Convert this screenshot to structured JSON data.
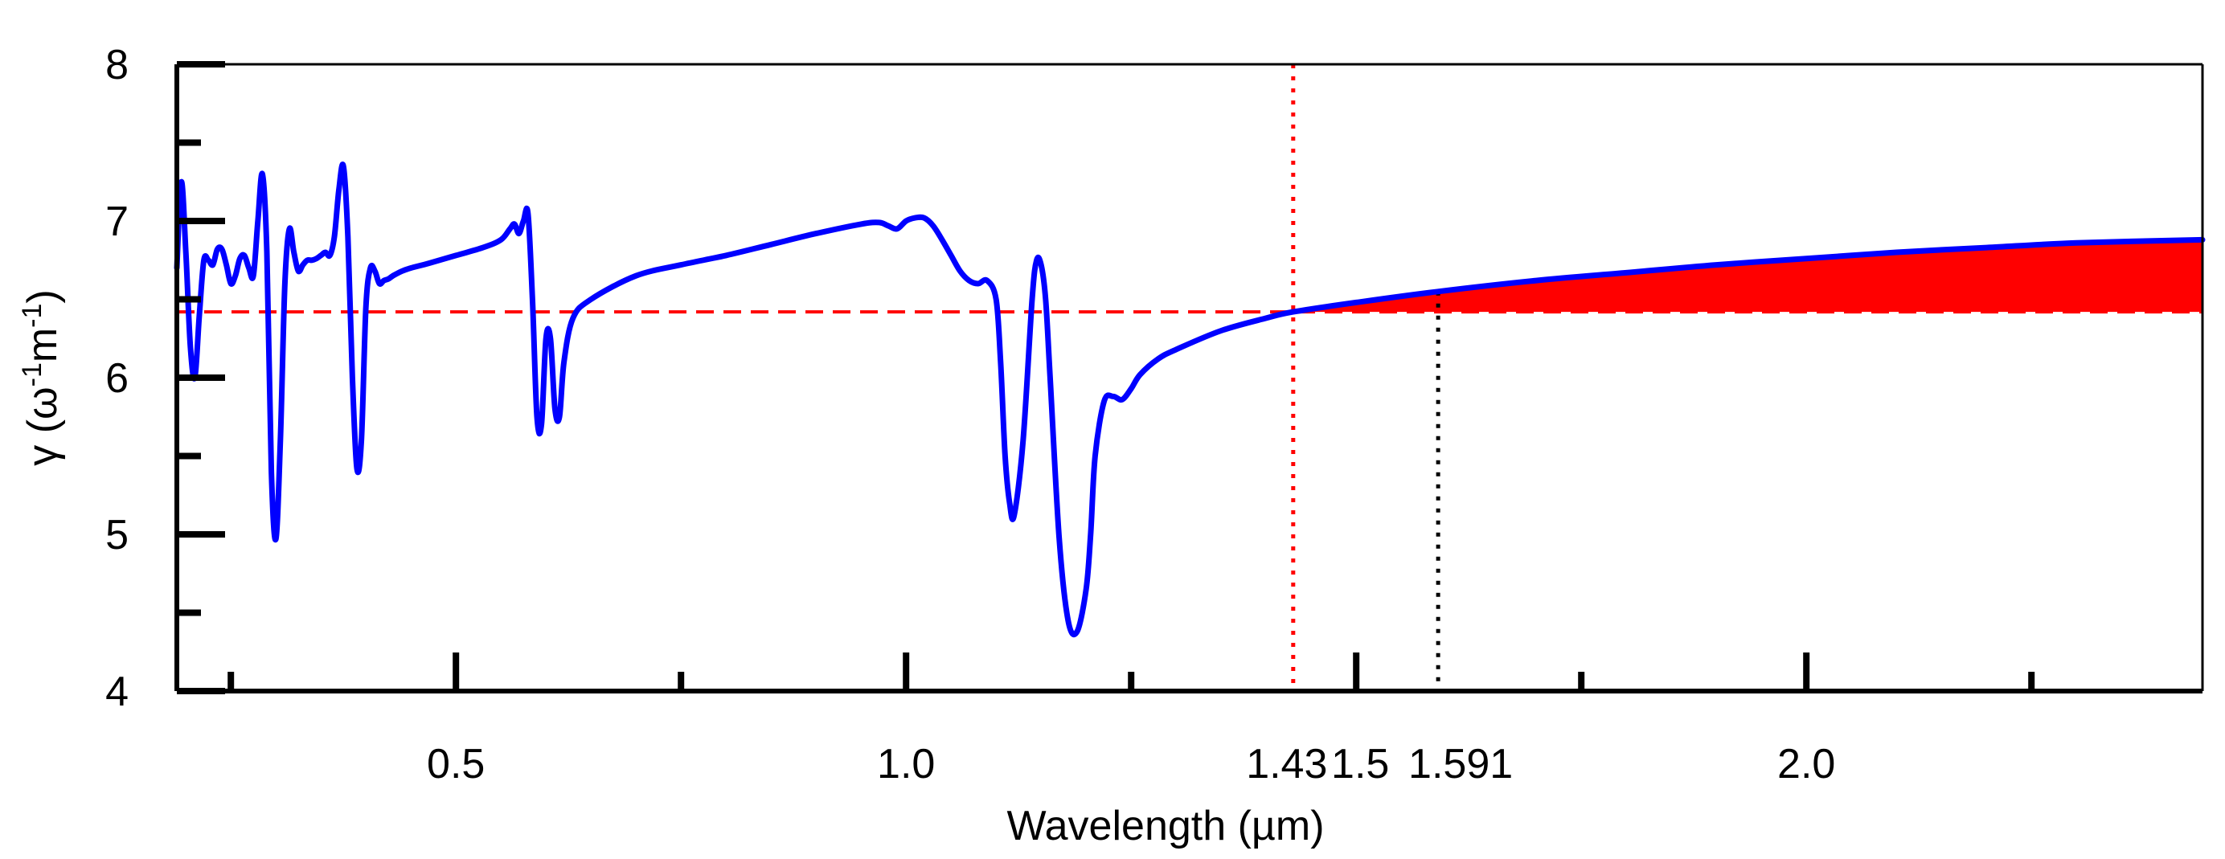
{
  "chart_data": {
    "type": "line",
    "title": "",
    "xlabel": "Wavelength (µm)",
    "ylabel": {
      "symbol": "γ",
      "unit_open": " (ω",
      "exp1": "-1",
      "unit_mid": "m",
      "exp2": "-1",
      "unit_close": ")"
    },
    "xlim": [
      0.19,
      2.44
    ],
    "ylim": [
      4,
      8
    ],
    "x_ticks_labeled": [
      {
        "value": 0.5,
        "label": "0.5"
      },
      {
        "value": 1.0,
        "label": "1.0"
      },
      {
        "value": 1.5,
        "label": "1.5"
      },
      {
        "value": 2.0,
        "label": "2.0"
      }
    ],
    "x_ticks_minor": [
      0.25,
      0.75,
      1.25,
      1.75,
      2.25
    ],
    "y_ticks_labeled": [
      {
        "value": 4,
        "label": "4"
      },
      {
        "value": 5,
        "label": "5"
      },
      {
        "value": 6,
        "label": "6"
      },
      {
        "value": 7,
        "label": "7"
      },
      {
        "value": 8,
        "label": "8"
      }
    ],
    "y_ticks_minor": [
      4.5,
      5.5,
      6.5,
      7.5
    ],
    "annotations": [
      {
        "type": "vline",
        "value": 1.43,
        "label": "1.43",
        "color": "#ff0000",
        "style": "dotted",
        "extent": "full"
      },
      {
        "type": "vline",
        "value": 1.591,
        "label": "1.591",
        "color": "#000000",
        "style": "dotted",
        "extent": "from-threshold-down"
      },
      {
        "type": "hline",
        "value": 6.42,
        "color": "#ff0000",
        "style": "dashed"
      },
      {
        "type": "fill-between",
        "from_x": 1.43,
        "lower_y": 6.42,
        "color": "#ff0000"
      }
    ],
    "series": [
      {
        "name": "γ",
        "color": "#0000ff",
        "x": [
          0.19,
          0.195,
          0.2,
          0.205,
          0.21,
          0.215,
          0.22,
          0.225,
          0.23,
          0.235,
          0.24,
          0.245,
          0.25,
          0.255,
          0.26,
          0.265,
          0.27,
          0.275,
          0.28,
          0.285,
          0.29,
          0.295,
          0.3,
          0.305,
          0.31,
          0.315,
          0.32,
          0.325,
          0.33,
          0.335,
          0.34,
          0.345,
          0.35,
          0.355,
          0.36,
          0.365,
          0.37,
          0.375,
          0.38,
          0.385,
          0.39,
          0.395,
          0.4,
          0.405,
          0.41,
          0.415,
          0.42,
          0.425,
          0.43,
          0.44,
          0.45,
          0.47,
          0.5,
          0.53,
          0.55,
          0.56,
          0.565,
          0.57,
          0.575,
          0.58,
          0.585,
          0.59,
          0.595,
          0.6,
          0.605,
          0.61,
          0.615,
          0.62,
          0.63,
          0.65,
          0.7,
          0.75,
          0.8,
          0.85,
          0.9,
          0.95,
          0.97,
          0.98,
          0.99,
          1.0,
          1.01,
          1.02,
          1.03,
          1.04,
          1.05,
          1.06,
          1.07,
          1.08,
          1.09,
          1.1,
          1.105,
          1.11,
          1.115,
          1.12,
          1.13,
          1.14,
          1.145,
          1.15,
          1.155,
          1.16,
          1.17,
          1.18,
          1.19,
          1.2,
          1.205,
          1.21,
          1.22,
          1.23,
          1.24,
          1.25,
          1.26,
          1.28,
          1.3,
          1.35,
          1.4,
          1.43,
          1.5,
          1.591,
          1.7,
          1.8,
          1.9,
          2.0,
          2.1,
          2.2,
          2.3,
          2.44
        ],
        "y": [
          6.7,
          7.25,
          6.8,
          6.2,
          6.0,
          6.4,
          6.75,
          6.75,
          6.72,
          6.82,
          6.82,
          6.72,
          6.6,
          6.65,
          6.76,
          6.78,
          6.7,
          6.65,
          7.0,
          7.3,
          6.8,
          5.4,
          4.97,
          5.6,
          6.6,
          6.95,
          6.8,
          6.68,
          6.72,
          6.75,
          6.75,
          6.76,
          6.78,
          6.8,
          6.78,
          6.9,
          7.2,
          7.35,
          6.9,
          6.0,
          5.42,
          5.6,
          6.45,
          6.7,
          6.68,
          6.6,
          6.62,
          6.63,
          6.65,
          6.68,
          6.7,
          6.73,
          6.78,
          6.83,
          6.88,
          6.95,
          6.98,
          6.92,
          7.0,
          7.05,
          6.5,
          5.75,
          5.7,
          6.25,
          6.25,
          5.8,
          5.75,
          6.1,
          6.38,
          6.5,
          6.65,
          6.72,
          6.78,
          6.85,
          6.92,
          6.98,
          6.99,
          6.97,
          6.95,
          7.0,
          7.02,
          7.02,
          6.97,
          6.88,
          6.78,
          6.68,
          6.62,
          6.6,
          6.62,
          6.5,
          6.1,
          5.5,
          5.2,
          5.12,
          5.6,
          6.5,
          6.75,
          6.72,
          6.5,
          6.0,
          4.98,
          4.45,
          4.38,
          4.65,
          5.0,
          5.5,
          5.85,
          5.88,
          5.86,
          5.93,
          6.02,
          6.12,
          6.18,
          6.3,
          6.38,
          6.42,
          6.48,
          6.55,
          6.62,
          6.67,
          6.72,
          6.76,
          6.8,
          6.83,
          6.86,
          6.88
        ]
      }
    ]
  }
}
